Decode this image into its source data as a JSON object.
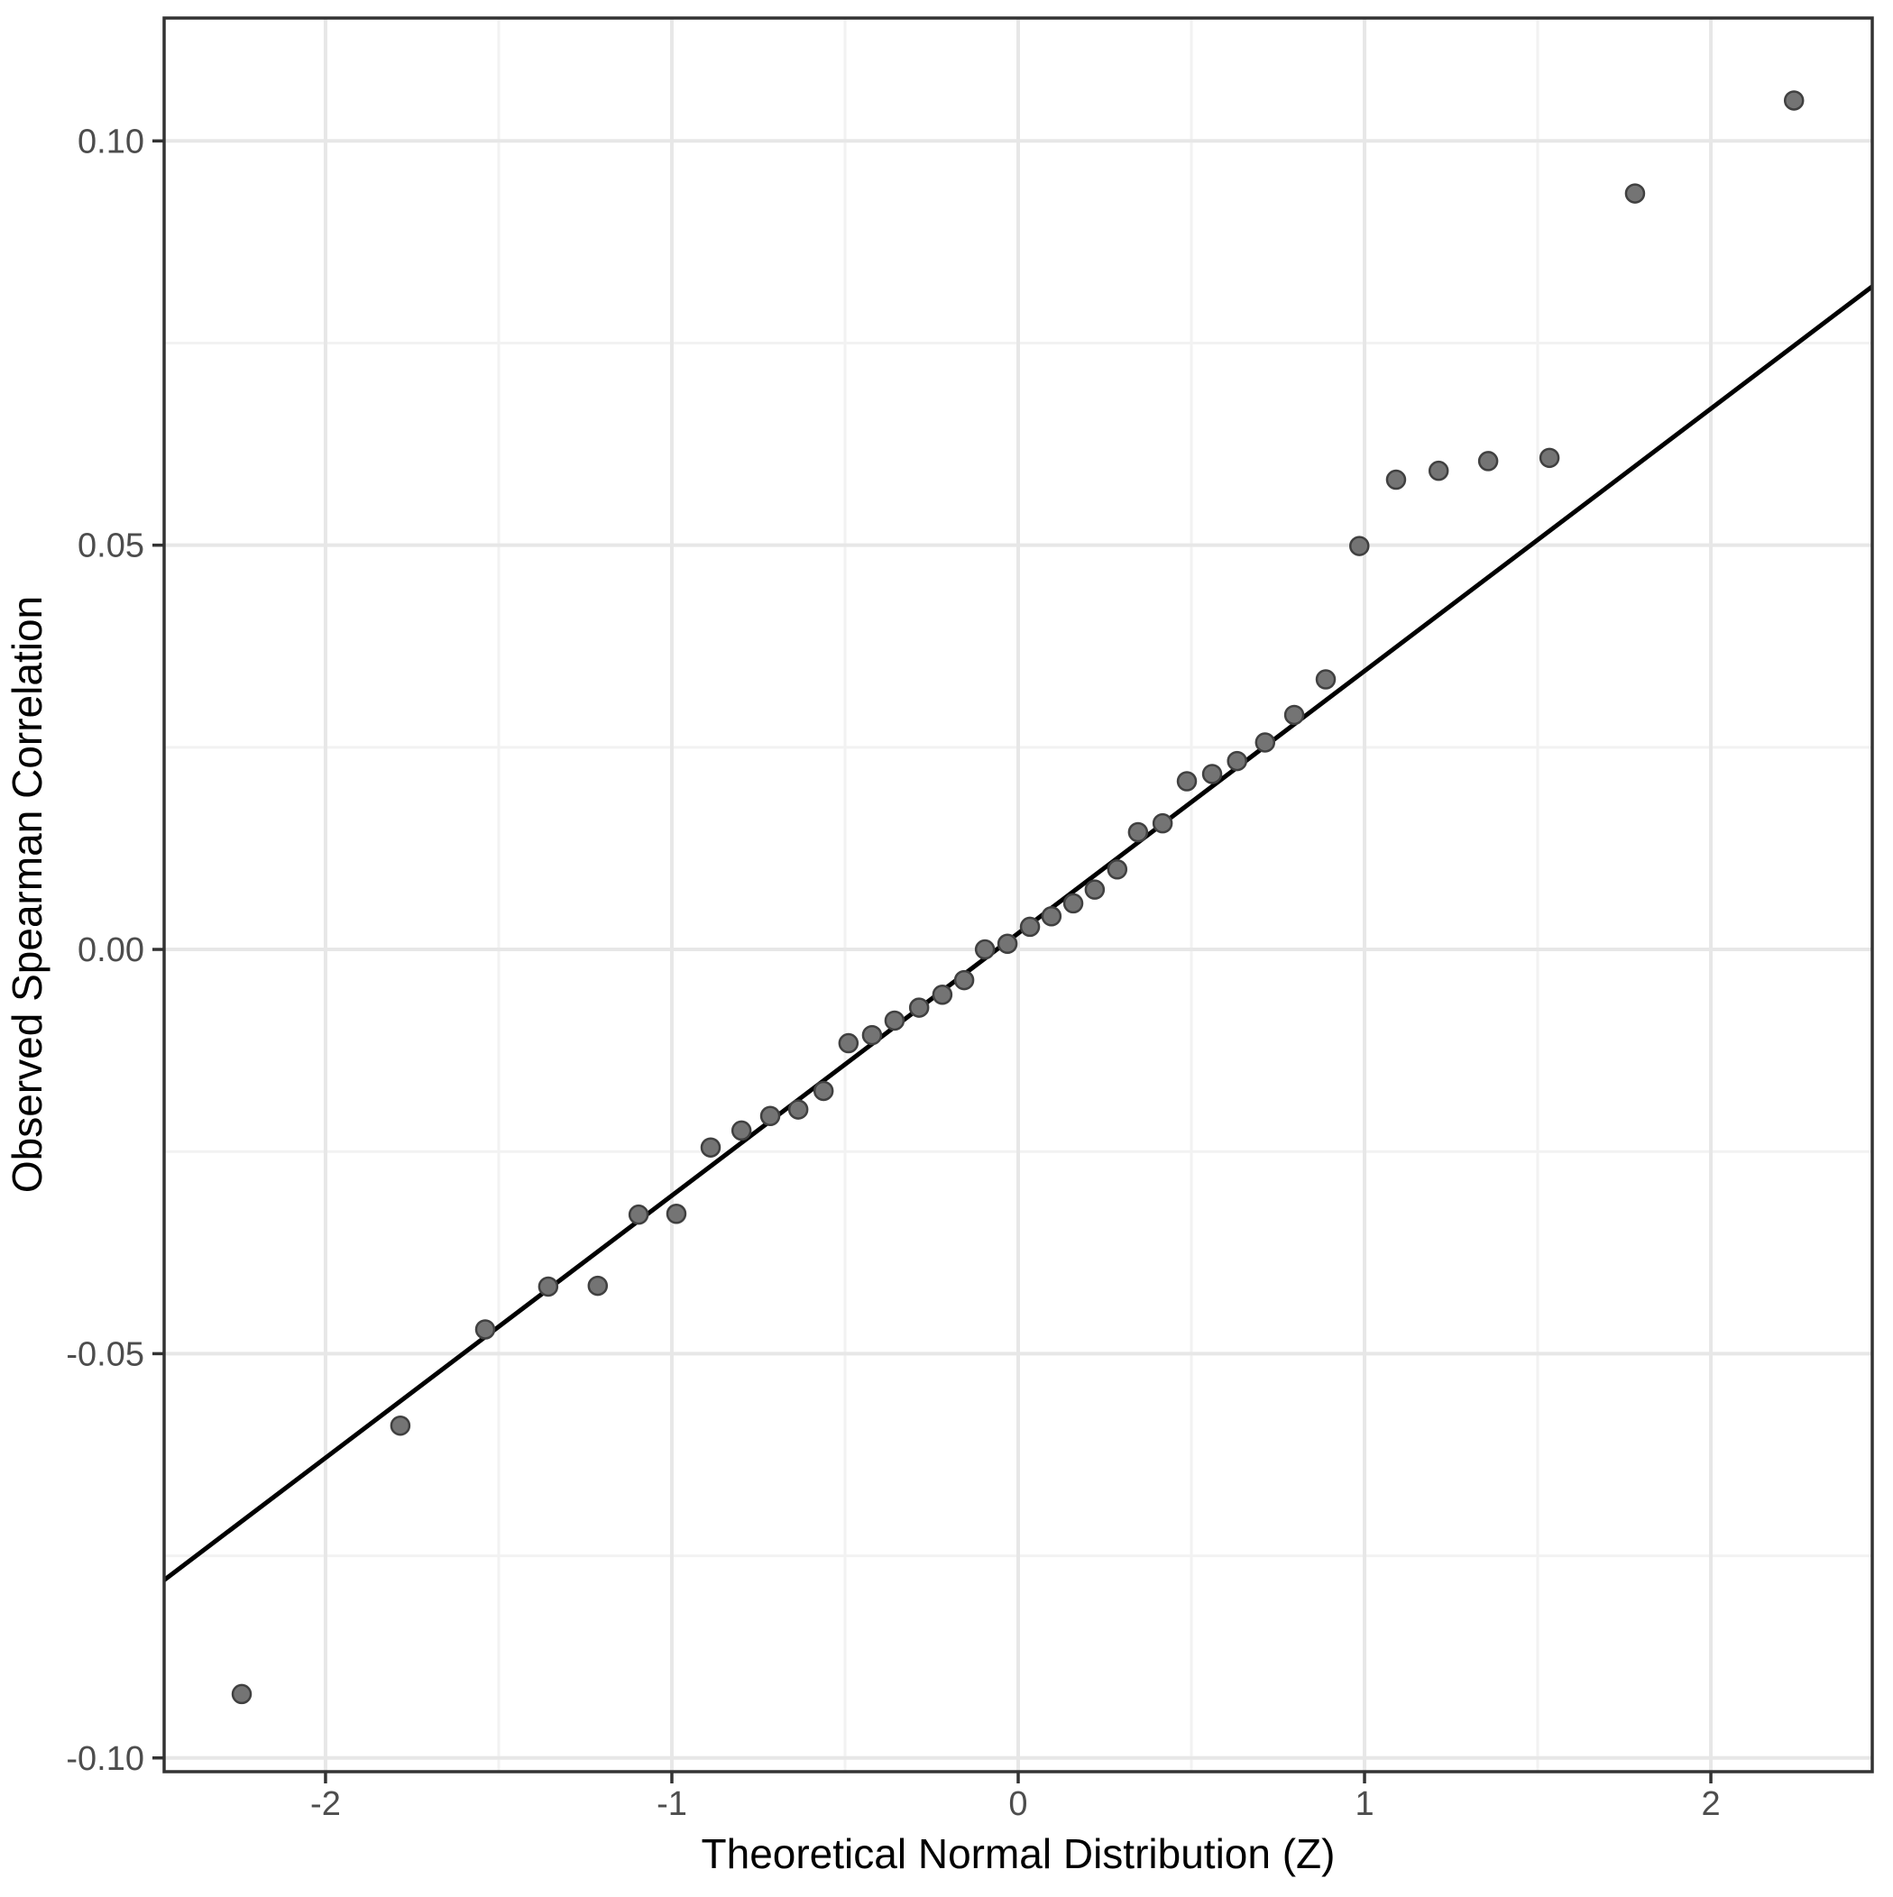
{
  "chart_data": {
    "type": "scatter",
    "title": "",
    "xlabel": "Theoretical Normal Distribution (Z)",
    "ylabel": "Observed Spearman Correlation",
    "xlim": [
      -2.466,
      2.466
    ],
    "ylim": [
      -0.1017,
      0.1152
    ],
    "grid": true,
    "legend": "none",
    "x_ticks": {
      "values": [
        -2,
        -1,
        0,
        1,
        2
      ],
      "labels": [
        "-2",
        "-1",
        "0",
        "1",
        "2"
      ]
    },
    "y_ticks": {
      "values": [
        0.1,
        0.05,
        0.0,
        -0.05,
        -0.1
      ],
      "labels": [
        "0.10",
        "0.05",
        "0.00",
        "-0.05",
        "-0.10"
      ]
    },
    "x_minor_gridlines": [
      -1.5,
      -0.5,
      0.5,
      1.5
    ],
    "y_minor_gridlines": [
      0.075,
      0.025,
      -0.025,
      -0.075
    ],
    "points": [
      [
        -2.242,
        -0.0921
      ],
      [
        -1.784,
        -0.0589
      ],
      [
        -1.539,
        -0.047
      ],
      [
        -1.357,
        -0.0417
      ],
      [
        -1.214,
        -0.0416
      ],
      [
        -1.096,
        -0.0328
      ],
      [
        -0.987,
        -0.0327
      ],
      [
        -0.888,
        -0.0245
      ],
      [
        -0.799,
        -0.0224
      ],
      [
        -0.716,
        -0.0206
      ],
      [
        -0.635,
        -0.0198
      ],
      [
        -0.562,
        -0.0175
      ],
      [
        -0.49,
        -0.0116
      ],
      [
        -0.422,
        -0.0106
      ],
      [
        -0.357,
        -0.0088
      ],
      [
        -0.286,
        -0.0072
      ],
      [
        -0.219,
        -0.0056
      ],
      [
        -0.156,
        -0.0038
      ],
      [
        -0.096,
        0.0
      ],
      [
        -0.031,
        0.0007
      ],
      [
        0.034,
        0.0028
      ],
      [
        0.096,
        0.0041
      ],
      [
        0.159,
        0.0057
      ],
      [
        0.221,
        0.0074
      ],
      [
        0.286,
        0.0099
      ],
      [
        0.346,
        0.0145
      ],
      [
        0.417,
        0.0156
      ],
      [
        0.487,
        0.0208
      ],
      [
        0.56,
        0.0217
      ],
      [
        0.632,
        0.0233
      ],
      [
        0.713,
        0.0256
      ],
      [
        0.797,
        0.029
      ],
      [
        0.888,
        0.0334
      ],
      [
        0.985,
        0.0499
      ],
      [
        1.091,
        0.0581
      ],
      [
        1.214,
        0.0592
      ],
      [
        1.357,
        0.0604
      ],
      [
        1.534,
        0.0608
      ],
      [
        1.781,
        0.0935
      ],
      [
        2.24,
        0.105
      ]
    ],
    "qq_line": {
      "x": [
        -2.466,
        2.466
      ],
      "y": [
        -0.078,
        0.082
      ]
    }
  },
  "colors": {
    "point_fill": "#747474",
    "point_stroke": "#404040",
    "qq_line": "#000000",
    "grid_major": "#e7e7e7",
    "grid_minor": "#f2f2f2",
    "panel_border": "#333333",
    "tick_mark": "#333333",
    "tick_label": "#4d4d4d",
    "axis_title": "#000000",
    "background": "#ffffff"
  }
}
